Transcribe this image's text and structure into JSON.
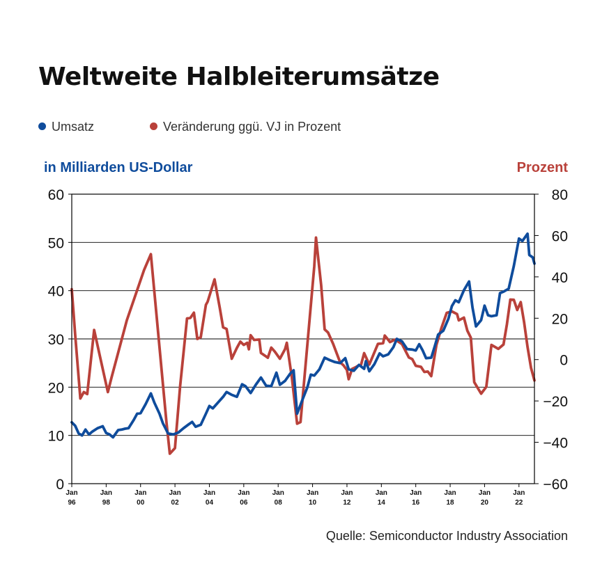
{
  "colors": {
    "umsatz": "#0f4c9c",
    "prozent": "#b9413a",
    "grid": "#000000"
  },
  "legend": [
    {
      "label": "Umsatz",
      "color": "#0f4c9c"
    },
    {
      "label": "Veränderung ggü. VJ in Prozent",
      "color": "#b9413a"
    }
  ],
  "chart_data": {
    "type": "line",
    "title": "Weltweite Halbleiterumsätze",
    "ylabel": "in Milliarden US-Dollar",
    "y2label": "Prozent",
    "source": "Quelle: Semiconductor Industry Association",
    "ylim": [
      0,
      60
    ],
    "y2lim": [
      -60,
      80
    ],
    "yticks": [
      0,
      10,
      20,
      30,
      40,
      50,
      60
    ],
    "y2ticks": [
      -60,
      -40,
      -20,
      0,
      20,
      40,
      60,
      80
    ],
    "xlim": [
      1996.0,
      2022.9
    ],
    "xticks": [
      {
        "value": 1996,
        "label": [
          "Jan",
          "96"
        ]
      },
      {
        "value": 1998,
        "label": [
          "Jan",
          "98"
        ]
      },
      {
        "value": 2000,
        "label": [
          "Jan",
          "00"
        ]
      },
      {
        "value": 2002,
        "label": [
          "Jan",
          "02"
        ]
      },
      {
        "value": 2004,
        "label": [
          "Jan",
          "04"
        ]
      },
      {
        "value": 2006,
        "label": [
          "Jan",
          "06"
        ]
      },
      {
        "value": 2008,
        "label": [
          "Jan",
          "08"
        ]
      },
      {
        "value": 2010,
        "label": [
          "Jan",
          "10"
        ]
      },
      {
        "value": 2012,
        "label": [
          "Jan",
          "12"
        ]
      },
      {
        "value": 2014,
        "label": [
          "Jan",
          "14"
        ]
      },
      {
        "value": 2016,
        "label": [
          "Jan",
          "16"
        ]
      },
      {
        "value": 2018,
        "label": [
          "Jan",
          "18"
        ]
      },
      {
        "value": 2020,
        "label": [
          "Jan",
          "20"
        ]
      },
      {
        "value": 2022,
        "label": [
          "Jan",
          "22"
        ]
      }
    ],
    "grid": "horizontal",
    "series": [
      {
        "name": "Umsatz",
        "axis": "left",
        "color": "#0f4c9c",
        "points": [
          [
            1996.0,
            12.7
          ],
          [
            1996.2,
            12.0
          ],
          [
            1996.4,
            10.4
          ],
          [
            1996.6,
            10.0
          ],
          [
            1996.8,
            11.2
          ],
          [
            1997.0,
            10.2
          ],
          [
            1997.2,
            10.8
          ],
          [
            1997.5,
            11.5
          ],
          [
            1997.8,
            11.9
          ],
          [
            1998.0,
            10.5
          ],
          [
            1998.2,
            10.2
          ],
          [
            1998.4,
            9.6
          ],
          [
            1998.7,
            11.1
          ],
          [
            1998.9,
            11.2
          ],
          [
            1999.1,
            11.4
          ],
          [
            1999.3,
            11.5
          ],
          [
            1999.6,
            13.2
          ],
          [
            1999.8,
            14.5
          ],
          [
            2000.0,
            14.6
          ],
          [
            2000.3,
            16.5
          ],
          [
            2000.6,
            18.7
          ],
          [
            2000.8,
            16.8
          ],
          [
            2001.1,
            14.5
          ],
          [
            2001.3,
            12.5
          ],
          [
            2001.6,
            10.4
          ],
          [
            2001.9,
            10.2
          ],
          [
            2002.2,
            10.6
          ],
          [
            2002.5,
            11.5
          ],
          [
            2002.8,
            12.3
          ],
          [
            2003.0,
            12.8
          ],
          [
            2003.2,
            11.8
          ],
          [
            2003.5,
            12.2
          ],
          [
            2003.8,
            14.5
          ],
          [
            2004.0,
            16.1
          ],
          [
            2004.2,
            15.6
          ],
          [
            2004.5,
            16.8
          ],
          [
            2004.8,
            18.0
          ],
          [
            2005.0,
            19.0
          ],
          [
            2005.3,
            18.4
          ],
          [
            2005.6,
            18.0
          ],
          [
            2005.9,
            20.6
          ],
          [
            2006.1,
            20.2
          ],
          [
            2006.4,
            18.8
          ],
          [
            2006.7,
            20.5
          ],
          [
            2007.0,
            22.0
          ],
          [
            2007.3,
            20.3
          ],
          [
            2007.6,
            20.2
          ],
          [
            2007.9,
            23.0
          ],
          [
            2008.1,
            20.5
          ],
          [
            2008.4,
            21.3
          ],
          [
            2008.7,
            22.8
          ],
          [
            2008.9,
            23.5
          ],
          [
            2009.1,
            14.5
          ],
          [
            2009.4,
            17.3
          ],
          [
            2009.7,
            20.0
          ],
          [
            2009.9,
            22.6
          ],
          [
            2010.1,
            22.4
          ],
          [
            2010.4,
            23.7
          ],
          [
            2010.7,
            26.1
          ],
          [
            2011.0,
            25.6
          ],
          [
            2011.3,
            25.2
          ],
          [
            2011.6,
            25.0
          ],
          [
            2011.9,
            26.0
          ],
          [
            2012.1,
            23.7
          ],
          [
            2012.4,
            23.4
          ],
          [
            2012.7,
            24.6
          ],
          [
            2013.0,
            23.8
          ],
          [
            2013.1,
            25.4
          ],
          [
            2013.3,
            23.3
          ],
          [
            2013.6,
            24.8
          ],
          [
            2013.9,
            27.0
          ],
          [
            2014.1,
            26.4
          ],
          [
            2014.4,
            26.8
          ],
          [
            2014.7,
            28.3
          ],
          [
            2014.9,
            30.0
          ],
          [
            2015.2,
            29.5
          ],
          [
            2015.5,
            27.9
          ],
          [
            2015.8,
            27.8
          ],
          [
            2016.0,
            27.6
          ],
          [
            2016.2,
            28.9
          ],
          [
            2016.4,
            27.6
          ],
          [
            2016.6,
            26.0
          ],
          [
            2016.9,
            26.1
          ],
          [
            2017.1,
            28.4
          ],
          [
            2017.3,
            30.9
          ],
          [
            2017.6,
            31.7
          ],
          [
            2017.9,
            34.2
          ],
          [
            2018.1,
            36.8
          ],
          [
            2018.3,
            38.0
          ],
          [
            2018.5,
            37.6
          ],
          [
            2018.8,
            40.1
          ],
          [
            2019.1,
            41.9
          ],
          [
            2019.3,
            36.5
          ],
          [
            2019.5,
            32.6
          ],
          [
            2019.8,
            33.9
          ],
          [
            2020.0,
            36.9
          ],
          [
            2020.2,
            34.9
          ],
          [
            2020.4,
            34.7
          ],
          [
            2020.7,
            34.9
          ],
          [
            2020.9,
            39.5
          ],
          [
            2021.1,
            39.8
          ],
          [
            2021.4,
            40.4
          ],
          [
            2021.7,
            45.1
          ],
          [
            2022.0,
            50.8
          ],
          [
            2022.2,
            50.3
          ],
          [
            2022.5,
            51.8
          ],
          [
            2022.6,
            47.4
          ],
          [
            2022.8,
            46.9
          ],
          [
            2022.9,
            45.6
          ]
        ]
      },
      {
        "name": "Veränderung ggü. VJ in Prozent",
        "axis": "right",
        "color": "#b9413a",
        "points": [
          [
            1996.0,
            34.0
          ],
          [
            1996.2,
            12.0
          ],
          [
            1996.5,
            -18.8
          ],
          [
            1996.7,
            -15.7
          ],
          [
            1996.9,
            -16.7
          ],
          [
            1997.3,
            14.3
          ],
          [
            1997.6,
            3.0
          ],
          [
            1998.1,
            -15.7
          ],
          [
            1998.3,
            -9.0
          ],
          [
            1999.2,
            19.0
          ],
          [
            2000.2,
            43.3
          ],
          [
            2000.6,
            51.0
          ],
          [
            2001.5,
            -30.0
          ],
          [
            2001.7,
            -45.5
          ],
          [
            2002.0,
            -42.8
          ],
          [
            2002.3,
            -12.9
          ],
          [
            2002.7,
            19.9
          ],
          [
            2002.9,
            20.2
          ],
          [
            2003.1,
            22.7
          ],
          [
            2003.3,
            10.0
          ],
          [
            2003.5,
            10.8
          ],
          [
            2003.8,
            26.5
          ],
          [
            2003.9,
            28.0
          ],
          [
            2004.3,
            38.8
          ],
          [
            2004.6,
            25.2
          ],
          [
            2004.8,
            15.6
          ],
          [
            2005.0,
            14.8
          ],
          [
            2005.3,
            0.4
          ],
          [
            2005.6,
            5.7
          ],
          [
            2005.8,
            8.7
          ],
          [
            2006.0,
            7.1
          ],
          [
            2006.2,
            8.1
          ],
          [
            2006.3,
            5.0
          ],
          [
            2006.4,
            11.8
          ],
          [
            2006.6,
            9.5
          ],
          [
            2006.9,
            9.7
          ],
          [
            2007.0,
            3.2
          ],
          [
            2007.4,
            0.9
          ],
          [
            2007.6,
            5.8
          ],
          [
            2007.8,
            3.9
          ],
          [
            2008.1,
            0.4
          ],
          [
            2008.4,
            5.1
          ],
          [
            2008.5,
            8.1
          ],
          [
            2008.8,
            -9.0
          ],
          [
            2009.1,
            -31.0
          ],
          [
            2009.3,
            -30.2
          ],
          [
            2010.1,
            45.0
          ],
          [
            2010.2,
            59.0
          ],
          [
            2010.5,
            36.0
          ],
          [
            2010.7,
            14.6
          ],
          [
            2010.9,
            13.1
          ],
          [
            2011.2,
            7.5
          ],
          [
            2011.6,
            -1.3
          ],
          [
            2011.8,
            -2.8
          ],
          [
            2012.0,
            -5.0
          ],
          [
            2012.1,
            -9.5
          ],
          [
            2012.3,
            -4.5
          ],
          [
            2012.5,
            -3.7
          ],
          [
            2012.7,
            -2.7
          ],
          [
            2012.8,
            -3.1
          ],
          [
            2013.0,
            3.1
          ],
          [
            2013.3,
            -2.4
          ],
          [
            2013.8,
            7.6
          ],
          [
            2014.1,
            7.9
          ],
          [
            2014.2,
            11.6
          ],
          [
            2014.5,
            8.5
          ],
          [
            2014.8,
            9.7
          ],
          [
            2015.2,
            7.5
          ],
          [
            2015.6,
            1.0
          ],
          [
            2015.8,
            0.2
          ],
          [
            2016.0,
            -3.0
          ],
          [
            2016.3,
            -3.5
          ],
          [
            2016.5,
            -6.0
          ],
          [
            2016.7,
            -5.8
          ],
          [
            2016.9,
            -8.0
          ],
          [
            2017.2,
            7.0
          ],
          [
            2017.5,
            15.5
          ],
          [
            2017.8,
            22.6
          ],
          [
            2018.1,
            23.3
          ],
          [
            2018.4,
            22.0
          ],
          [
            2018.5,
            19.0
          ],
          [
            2018.8,
            20.3
          ],
          [
            2019.0,
            14.0
          ],
          [
            2019.2,
            10.6
          ],
          [
            2019.4,
            -10.9
          ],
          [
            2019.8,
            -16.5
          ],
          [
            2020.1,
            -13.2
          ],
          [
            2020.4,
            7.1
          ],
          [
            2020.8,
            5.2
          ],
          [
            2021.1,
            7.3
          ],
          [
            2021.3,
            17.1
          ],
          [
            2021.5,
            29.0
          ],
          [
            2021.7,
            28.9
          ],
          [
            2021.9,
            24.0
          ],
          [
            2022.1,
            27.8
          ],
          [
            2022.3,
            18.0
          ],
          [
            2022.5,
            6.1
          ],
          [
            2022.7,
            -4.0
          ],
          [
            2022.9,
            -10.1
          ]
        ]
      }
    ]
  }
}
